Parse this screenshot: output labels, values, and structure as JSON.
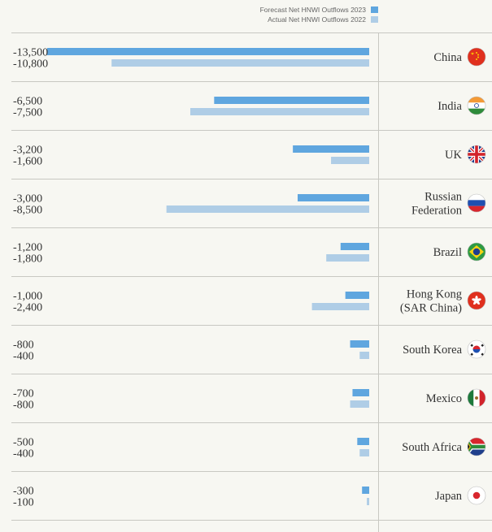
{
  "chart_data": {
    "type": "bar",
    "orientation": "horizontal",
    "categories": [
      "China",
      "India",
      "UK",
      "Russian\nFederation",
      "Brazil",
      "Hong Kong\n(SAR China)",
      "South Korea",
      "Mexico",
      "South Africa",
      "Japan"
    ],
    "series": [
      {
        "name": "Forecast Net HNWI Outflows 2023",
        "color": "#5fa6df",
        "values": [
          -13500,
          -6500,
          -3200,
          -3000,
          -1200,
          -1000,
          -800,
          -700,
          -500,
          -300
        ],
        "labels": [
          "-13,500",
          "-6,500",
          "-3,200",
          "-3,000",
          "-1,200",
          "-1,000",
          "-800",
          "-700",
          "-500",
          "-300"
        ]
      },
      {
        "name": "Actual Net HNWI Outflows 2022",
        "color": "#afcde6",
        "values": [
          -10800,
          -7500,
          -1600,
          -8500,
          -1800,
          -2400,
          -400,
          -800,
          -400,
          -100
        ],
        "labels": [
          "-10,800",
          "-7,500",
          "-1,600",
          "-8,500",
          "-1,800",
          "-2,400",
          "-400",
          "-800",
          "-400",
          "-100"
        ]
      }
    ],
    "xlim": [
      -15000,
      0
    ],
    "legend_position": "top-right",
    "grid": false
  },
  "flags": [
    "china-flag-icon",
    "india-flag-icon",
    "uk-flag-icon",
    "russia-flag-icon",
    "brazil-flag-icon",
    "hong-kong-flag-icon",
    "south-korea-flag-icon",
    "mexico-flag-icon",
    "south-africa-flag-icon",
    "japan-flag-icon"
  ]
}
